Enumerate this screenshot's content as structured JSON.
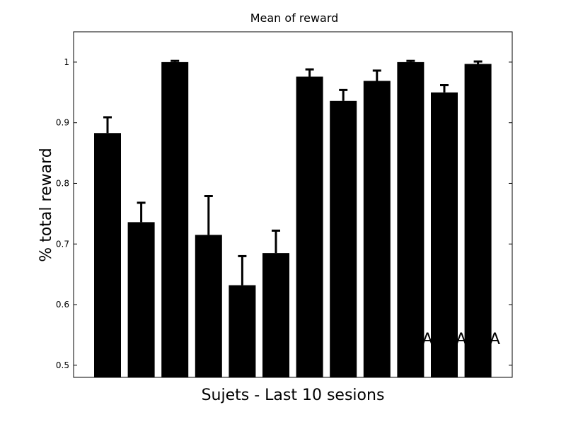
{
  "chart_data": {
    "type": "bar",
    "title": "Mean of reward",
    "xlabel": "Sujets - Last 10 sesions",
    "ylabel": "% total reward",
    "ylim": [
      0.48,
      1.05
    ],
    "yticks": [
      "0.5",
      "0.6",
      "0.7",
      "0.8",
      "0.9",
      "1"
    ],
    "values": [
      0.883,
      0.736,
      1.0,
      0.715,
      0.632,
      0.685,
      0.976,
      0.936,
      0.969,
      1.0,
      0.95,
      0.997
    ],
    "errors": [
      0.026,
      0.032,
      0.002,
      0.064,
      0.048,
      0.037,
      0.012,
      0.018,
      0.017,
      0.002,
      0.012,
      0.004
    ],
    "bar_color": "#000000",
    "grid": false,
    "annotations": [
      {
        "text": "A",
        "bar_index": 9
      },
      {
        "text": "A",
        "bar_index": 10
      },
      {
        "text": "A",
        "bar_index": 11
      }
    ]
  }
}
